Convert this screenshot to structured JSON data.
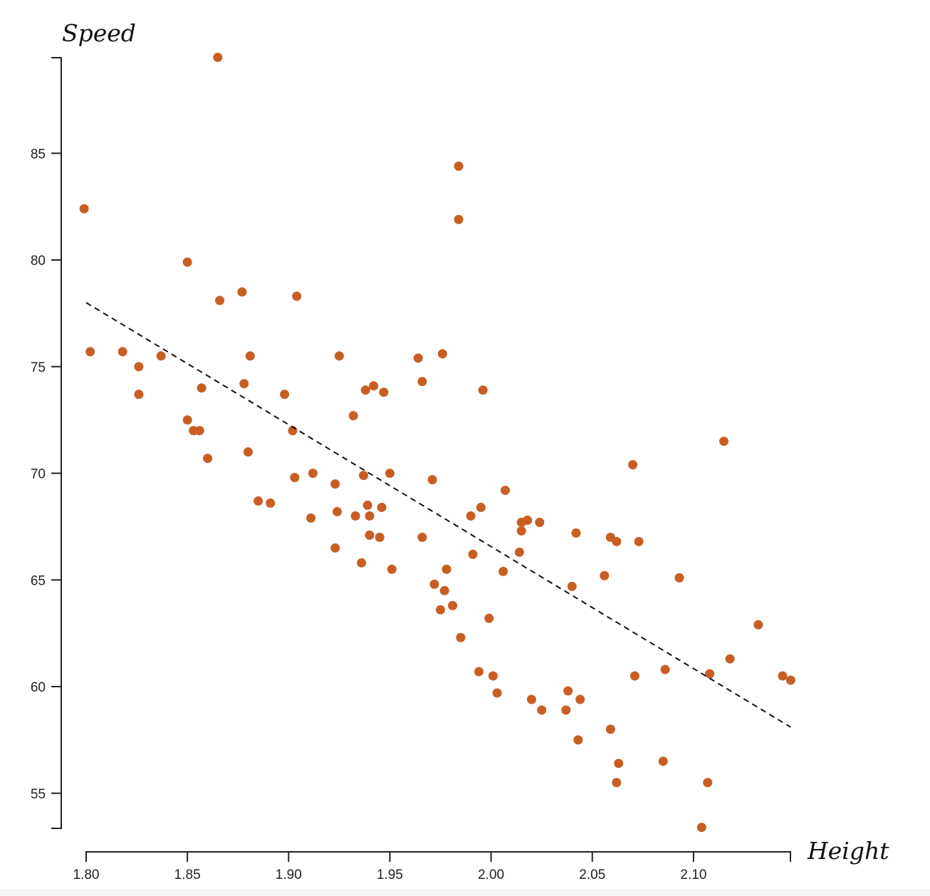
{
  "chart_data": {
    "type": "scatter",
    "xlabel": "Height",
    "ylabel": "Speed",
    "xlim": [
      1.8,
      2.15
    ],
    "ylim": [
      53.4,
      89.5
    ],
    "x_ticks": [
      "1.80",
      "1.85",
      "1.90",
      "1.95",
      "2.00",
      "2.05",
      "2.10"
    ],
    "y_ticks": [
      "55",
      "60",
      "65",
      "70",
      "75",
      "80",
      "85"
    ],
    "grid": false,
    "colors": {
      "points": "#c85e23",
      "trend": "#111111",
      "axis": "#222222"
    },
    "trend_line": {
      "x": [
        1.8,
        2.148
      ],
      "y": [
        78.0,
        58.1
      ]
    },
    "points": [
      {
        "x": 1.799,
        "y": 82.4
      },
      {
        "x": 1.802,
        "y": 75.7
      },
      {
        "x": 1.818,
        "y": 75.7
      },
      {
        "x": 1.826,
        "y": 75.0
      },
      {
        "x": 1.826,
        "y": 73.7
      },
      {
        "x": 1.837,
        "y": 75.5
      },
      {
        "x": 1.85,
        "y": 79.9
      },
      {
        "x": 1.85,
        "y": 72.5
      },
      {
        "x": 1.853,
        "y": 72.0
      },
      {
        "x": 1.856,
        "y": 72.0
      },
      {
        "x": 1.857,
        "y": 74.0
      },
      {
        "x": 1.86,
        "y": 70.7
      },
      {
        "x": 1.865,
        "y": 89.5
      },
      {
        "x": 1.866,
        "y": 78.1
      },
      {
        "x": 1.877,
        "y": 78.5
      },
      {
        "x": 1.878,
        "y": 74.2
      },
      {
        "x": 1.88,
        "y": 71.0
      },
      {
        "x": 1.881,
        "y": 75.5
      },
      {
        "x": 1.885,
        "y": 68.7
      },
      {
        "x": 1.891,
        "y": 68.6
      },
      {
        "x": 1.898,
        "y": 73.7
      },
      {
        "x": 1.902,
        "y": 72.0
      },
      {
        "x": 1.903,
        "y": 69.8
      },
      {
        "x": 1.904,
        "y": 78.3
      },
      {
        "x": 1.911,
        "y": 67.9
      },
      {
        "x": 1.912,
        "y": 70.0
      },
      {
        "x": 1.923,
        "y": 69.5
      },
      {
        "x": 1.923,
        "y": 66.5
      },
      {
        "x": 1.924,
        "y": 68.2
      },
      {
        "x": 1.925,
        "y": 75.5
      },
      {
        "x": 1.932,
        "y": 72.7
      },
      {
        "x": 1.933,
        "y": 68.0
      },
      {
        "x": 1.936,
        "y": 65.8
      },
      {
        "x": 1.937,
        "y": 69.9
      },
      {
        "x": 1.938,
        "y": 73.9
      },
      {
        "x": 1.939,
        "y": 68.5
      },
      {
        "x": 1.94,
        "y": 67.1
      },
      {
        "x": 1.94,
        "y": 68.0
      },
      {
        "x": 1.942,
        "y": 74.1
      },
      {
        "x": 1.945,
        "y": 67.0
      },
      {
        "x": 1.946,
        "y": 68.4
      },
      {
        "x": 1.947,
        "y": 73.8
      },
      {
        "x": 1.95,
        "y": 70.0
      },
      {
        "x": 1.951,
        "y": 65.5
      },
      {
        "x": 1.964,
        "y": 75.4
      },
      {
        "x": 1.966,
        "y": 74.3
      },
      {
        "x": 1.966,
        "y": 67.0
      },
      {
        "x": 1.971,
        "y": 69.7
      },
      {
        "x": 1.972,
        "y": 64.8
      },
      {
        "x": 1.975,
        "y": 63.6
      },
      {
        "x": 1.976,
        "y": 75.6
      },
      {
        "x": 1.977,
        "y": 64.5
      },
      {
        "x": 1.978,
        "y": 65.5
      },
      {
        "x": 1.981,
        "y": 63.8
      },
      {
        "x": 1.984,
        "y": 81.9
      },
      {
        "x": 1.984,
        "y": 84.4
      },
      {
        "x": 1.985,
        "y": 62.3
      },
      {
        "x": 1.99,
        "y": 68.0
      },
      {
        "x": 1.991,
        "y": 66.2
      },
      {
        "x": 1.994,
        "y": 60.7
      },
      {
        "x": 1.995,
        "y": 68.4
      },
      {
        "x": 1.996,
        "y": 73.9
      },
      {
        "x": 1.999,
        "y": 63.2
      },
      {
        "x": 2.001,
        "y": 60.5
      },
      {
        "x": 2.003,
        "y": 59.7
      },
      {
        "x": 2.006,
        "y": 65.4
      },
      {
        "x": 2.007,
        "y": 69.2
      },
      {
        "x": 2.014,
        "y": 66.3
      },
      {
        "x": 2.015,
        "y": 67.3
      },
      {
        "x": 2.015,
        "y": 67.7
      },
      {
        "x": 2.018,
        "y": 67.8
      },
      {
        "x": 2.02,
        "y": 59.4
      },
      {
        "x": 2.024,
        "y": 67.7
      },
      {
        "x": 2.025,
        "y": 58.9
      },
      {
        "x": 2.037,
        "y": 58.9
      },
      {
        "x": 2.038,
        "y": 59.8
      },
      {
        "x": 2.04,
        "y": 64.7
      },
      {
        "x": 2.042,
        "y": 67.2
      },
      {
        "x": 2.043,
        "y": 57.5
      },
      {
        "x": 2.044,
        "y": 59.4
      },
      {
        "x": 2.056,
        "y": 65.2
      },
      {
        "x": 2.059,
        "y": 58.0
      },
      {
        "x": 2.059,
        "y": 67.0
      },
      {
        "x": 2.062,
        "y": 66.8
      },
      {
        "x": 2.062,
        "y": 55.5
      },
      {
        "x": 2.063,
        "y": 56.4
      },
      {
        "x": 2.07,
        "y": 70.4
      },
      {
        "x": 2.071,
        "y": 60.5
      },
      {
        "x": 2.073,
        "y": 66.8
      },
      {
        "x": 2.085,
        "y": 56.5
      },
      {
        "x": 2.086,
        "y": 60.8
      },
      {
        "x": 2.093,
        "y": 65.1
      },
      {
        "x": 2.104,
        "y": 53.4
      },
      {
        "x": 2.107,
        "y": 55.5
      },
      {
        "x": 2.108,
        "y": 60.6
      },
      {
        "x": 2.115,
        "y": 71.5
      },
      {
        "x": 2.118,
        "y": 61.3
      },
      {
        "x": 2.132,
        "y": 62.9
      },
      {
        "x": 2.144,
        "y": 60.5
      },
      {
        "x": 2.148,
        "y": 60.3
      }
    ]
  }
}
